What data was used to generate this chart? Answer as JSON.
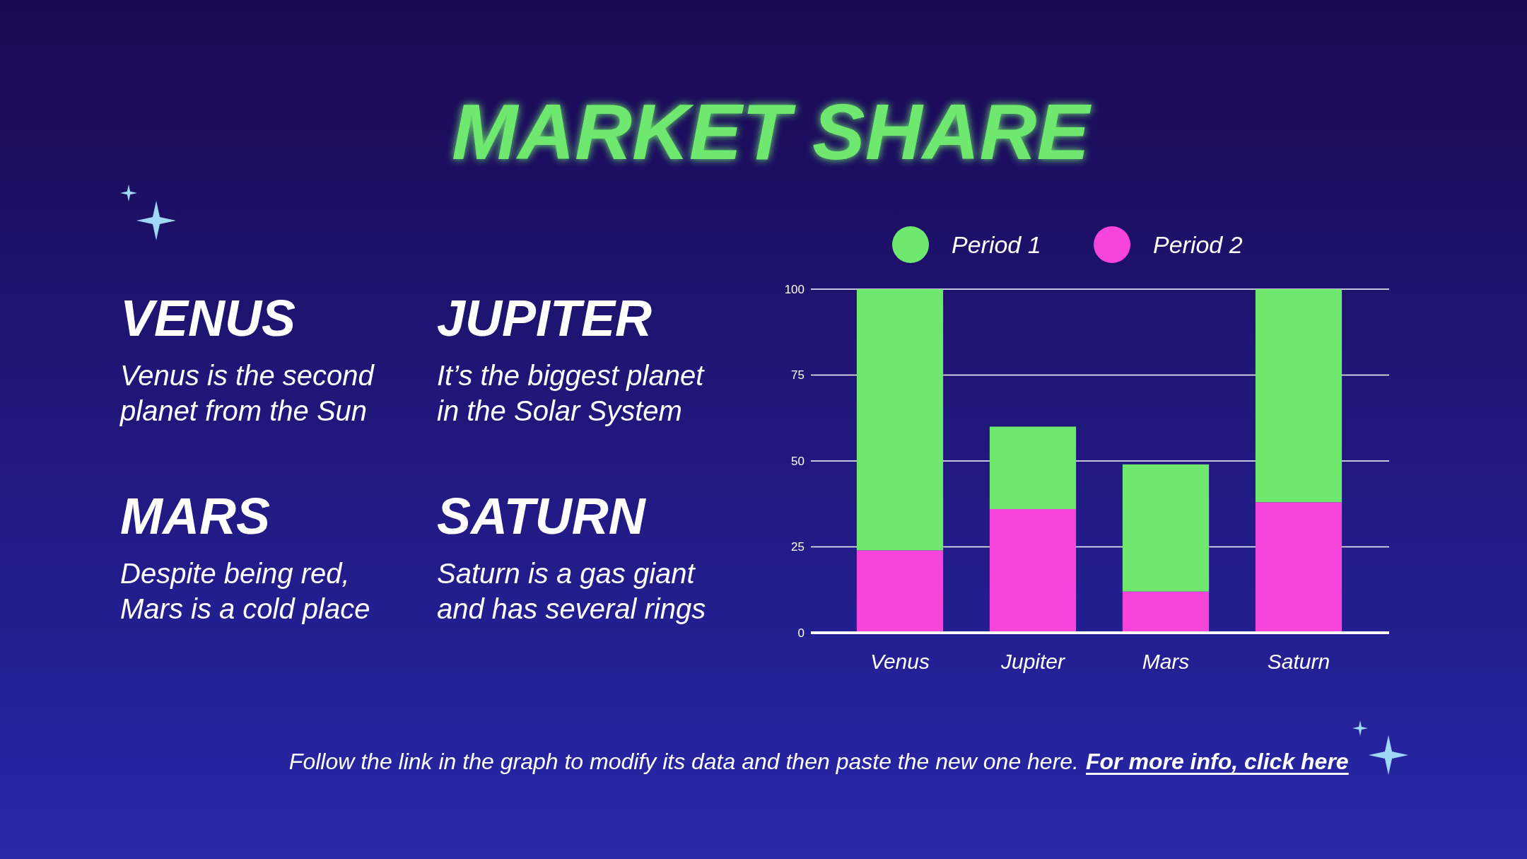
{
  "chart_data": {
    "type": "bar",
    "title": "MARKET SHARE",
    "stacked": true,
    "categories": [
      "Venus",
      "Jupiter",
      "Mars",
      "Saturn"
    ],
    "series": [
      {
        "name": "Period 2",
        "color": "#f745dc",
        "values": [
          24,
          36,
          12,
          38
        ]
      },
      {
        "name": "Period 1",
        "color": "#6ee86e",
        "values": [
          76,
          24,
          37,
          62
        ]
      }
    ],
    "ylim": [
      0,
      100
    ],
    "yticks": [
      0,
      25,
      50,
      75,
      100
    ],
    "grid": "y",
    "legend": "top",
    "annotations": [
      "VENUS",
      "Venus is the second\nplanet from the Sun",
      "JUPITER",
      "It’s the biggest planet\nin the Solar System",
      "MARS",
      "Despite being red,\nMars is a cold place",
      "SATURN",
      "Saturn is a gas giant\nand has several rings",
      "Follow the link in the graph to modify its data and then paste the new one here.",
      "For more info, click here"
    ]
  }
}
